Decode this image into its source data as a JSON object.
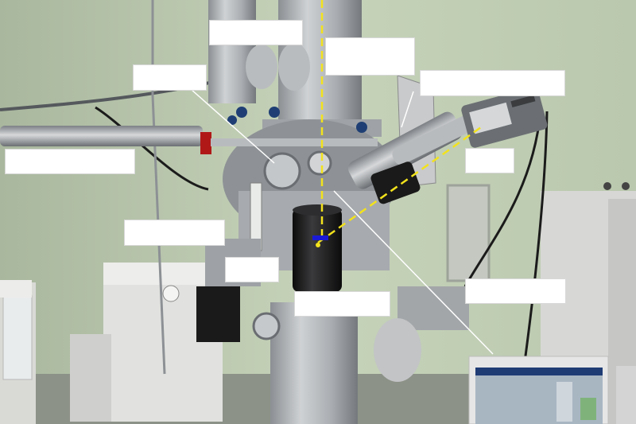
{
  "photo": {
    "subject": "",
    "annotation_labels": [
      "",
      "",
      "",
      "",
      "",
      "",
      "",
      "",
      ""
    ]
  },
  "colors": {
    "wall": "#c3d0b6",
    "steel": "#9a9ea2",
    "dark_steel": "#5c6066",
    "black": "#141414",
    "guide_line": "#f2e21c",
    "marker": "#1a1ad6",
    "label_fill": "#ffffff"
  },
  "icons": [
    "guide-line-vertical",
    "guide-line-diagonal",
    "beam-marker"
  ]
}
